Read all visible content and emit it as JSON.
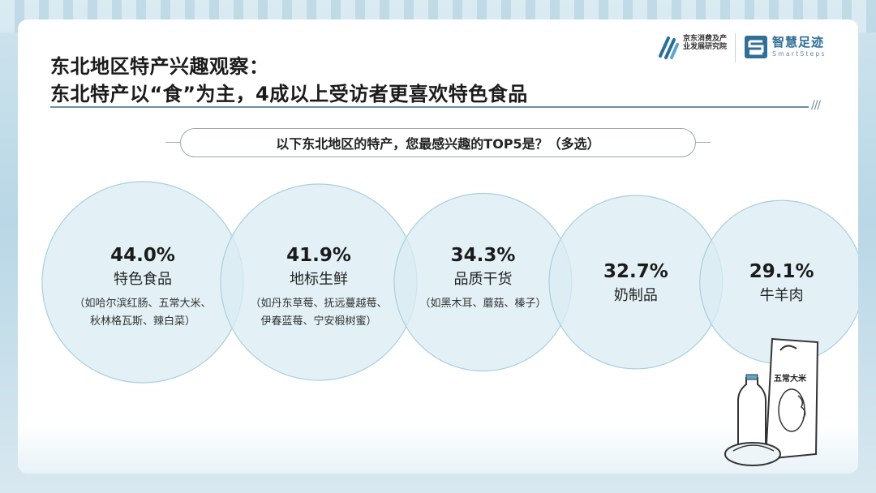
{
  "header": {
    "title_line1": "东北地区特产兴趣观察：",
    "title_line2": "东北特产以“食”为主，4成以上受访者更喜欢特色食品",
    "slashes": "///"
  },
  "logos": {
    "jd_label": "京东消费及产业发展研究院",
    "smartsteps_label": "智慧足迹",
    "smartsteps_sub": "SmartSteps"
  },
  "question": "以下东北地区的特产，您最感兴趣的TOP5是？（多选）",
  "chart_data": {
    "type": "bubble",
    "unit": "%",
    "categories": [
      "特色食品",
      "地标生鲜",
      "品质干货",
      "奶制品",
      "牛羊肉"
    ],
    "values": [
      44.0,
      41.9,
      34.3,
      32.7,
      29.1
    ],
    "value_labels": [
      "44.0%",
      "41.9%",
      "34.3%",
      "32.7%",
      "29.1%"
    ],
    "notes": [
      [
        "（如哈尔滨红肠、五常大米、",
        "秋林格瓦斯、辣白菜）"
      ],
      [
        "（如丹东草莓、抚远蔓越莓、",
        "伊春蓝莓、宁安椴树蜜）"
      ],
      [
        "（如黑木耳、蘑菇、榛子）"
      ],
      [],
      []
    ],
    "colors": {
      "fill": "#d9ecf3",
      "stroke": "#a9cfdd",
      "value": "#1b1b1b",
      "label": "#222222",
      "note": "#333333"
    }
  },
  "illustration": {
    "rice_bag_text": "五常大米"
  }
}
